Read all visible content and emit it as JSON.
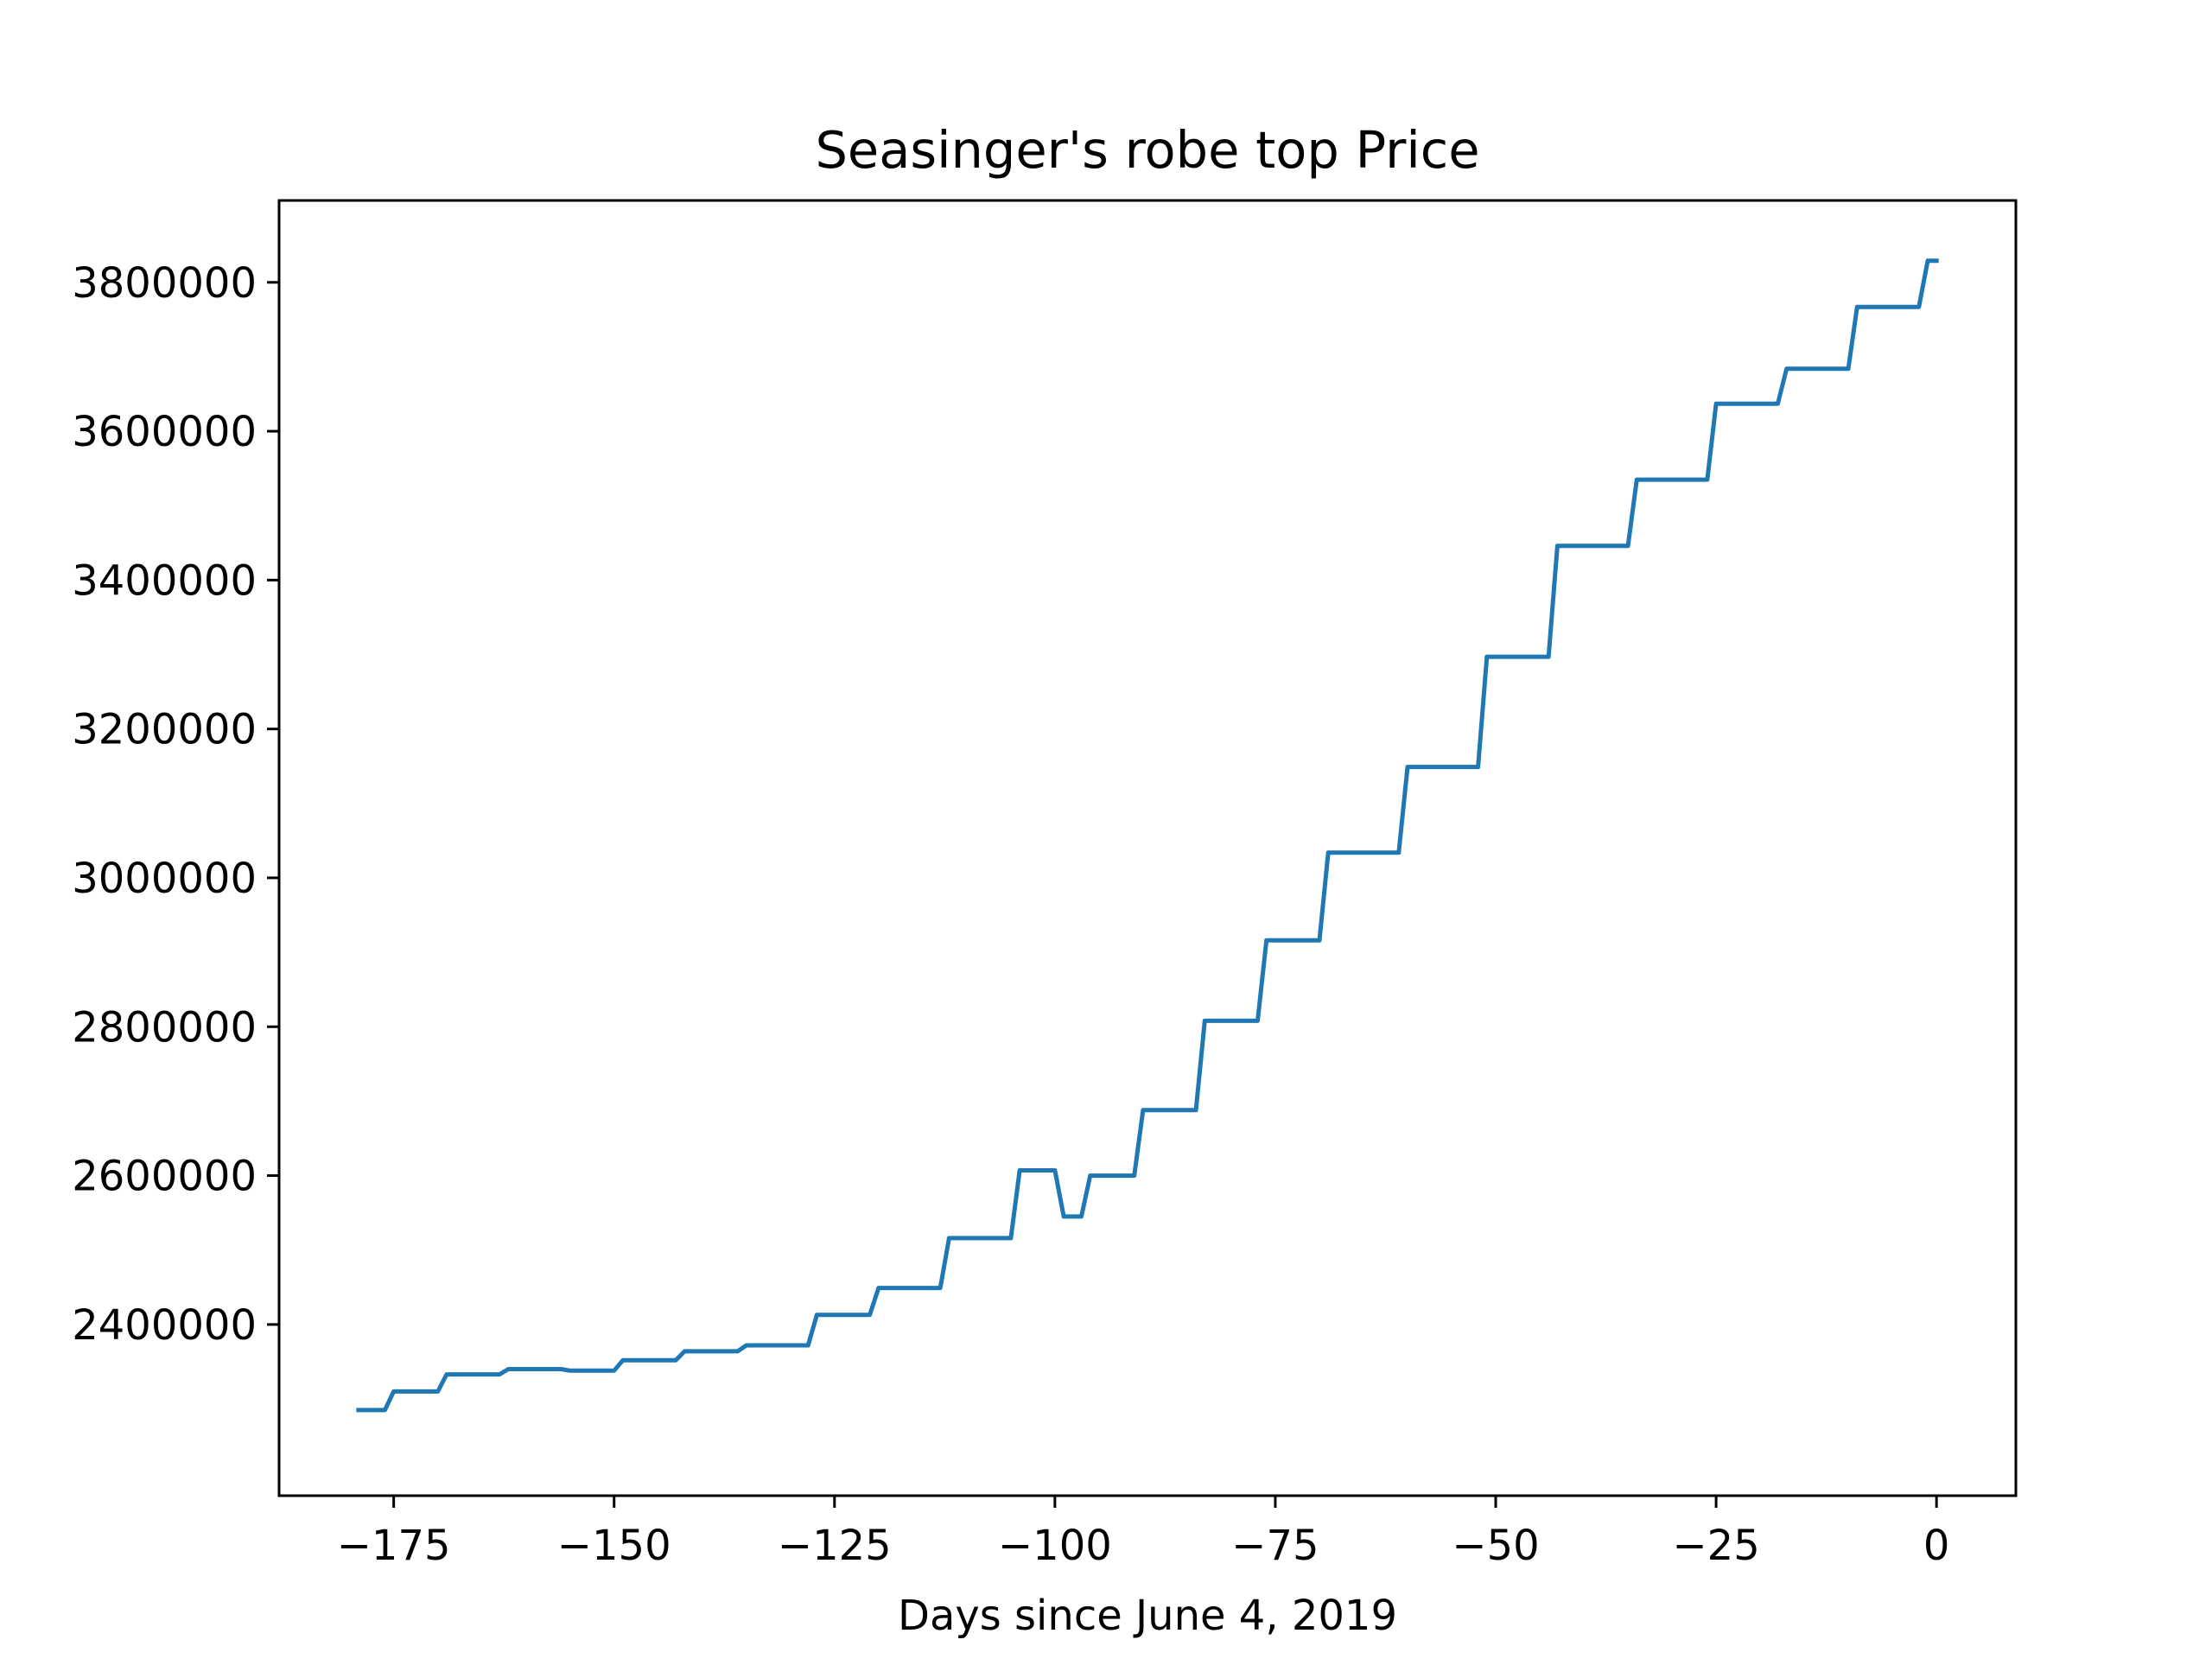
{
  "chart_data": {
    "type": "line",
    "title": "Seasinger's robe top Price",
    "xlabel": "Days since June 4, 2019",
    "ylabel": "",
    "xlim": [
      -188,
      9
    ],
    "ylim": [
      2170000,
      3910000
    ],
    "grid": false,
    "legend": "none",
    "line_color": "#1f77b4",
    "x_ticks": [
      -175,
      -150,
      -125,
      -100,
      -75,
      -50,
      -25,
      0
    ],
    "x_tick_labels": [
      "−175",
      "−150",
      "−125",
      "−100",
      "−75",
      "−50",
      "−25",
      "0"
    ],
    "y_ticks": [
      2400000,
      2600000,
      2800000,
      3000000,
      3200000,
      3400000,
      3600000,
      3800000
    ],
    "y_tick_labels": [
      "2400000",
      "2600000",
      "2800000",
      "3000000",
      "3200000",
      "3400000",
      "3600000",
      "3800000"
    ],
    "series": [
      {
        "x": [
          -179,
          -176,
          -175,
          -170,
          -169,
          -163,
          -162,
          -156,
          -155,
          -150,
          -149,
          -143,
          -142,
          -136,
          -135,
          -128,
          -127,
          -121,
          -120,
          -113,
          -112,
          -105,
          -104,
          -100,
          -99,
          -97,
          -96,
          -91,
          -90,
          -84,
          -83,
          -77,
          -76,
          -70,
          -69,
          -61,
          -60,
          -52,
          -51,
          -44,
          -43,
          -35,
          -34,
          -26,
          -25,
          -18,
          -17,
          -10,
          -9,
          -2,
          -1,
          0
        ],
        "y": [
          2285000,
          2285000,
          2310000,
          2310000,
          2333000,
          2333000,
          2340000,
          2340000,
          2338000,
          2338000,
          2352000,
          2352000,
          2364000,
          2364000,
          2372000,
          2372000,
          2413000,
          2413000,
          2449000,
          2449000,
          2516000,
          2516000,
          2607000,
          2607000,
          2545000,
          2545000,
          2600000,
          2600000,
          2688000,
          2688000,
          2808000,
          2808000,
          2916000,
          2916000,
          3034000,
          3034000,
          3149000,
          3149000,
          3297000,
          3297000,
          3446000,
          3446000,
          3535000,
          3535000,
          3637000,
          3637000,
          3684000,
          3684000,
          3767000,
          3767000,
          3829000,
          3829000
        ]
      }
    ]
  }
}
